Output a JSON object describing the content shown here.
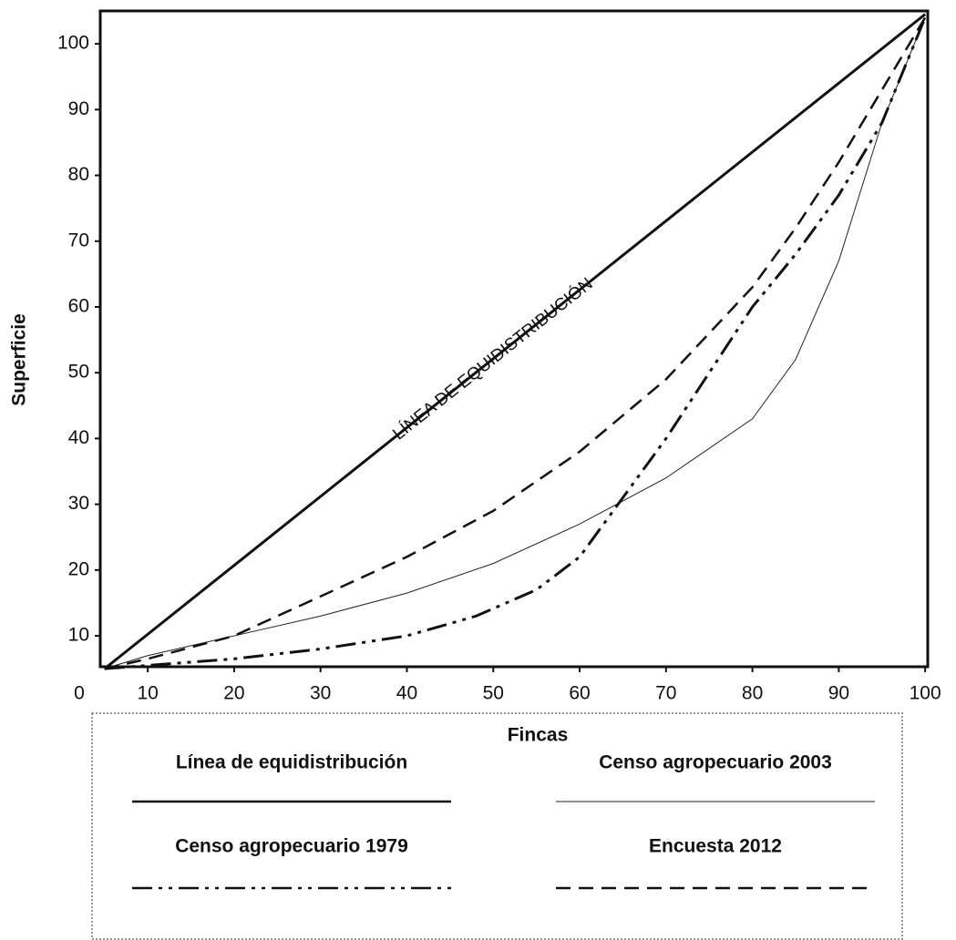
{
  "chart_data": {
    "type": "line",
    "xlabel": "Fincas",
    "ylabel": "Superficie",
    "origin_label": "0",
    "annotation": "LÍNEA DE EQUIDISTRIBUCIÓN",
    "xlim": [
      4.5,
      100.3
    ],
    "ylim": [
      5.3,
      105
    ],
    "xticks": [
      10,
      20,
      30,
      40,
      50,
      60,
      70,
      80,
      90,
      100
    ],
    "yticks": [
      10,
      20,
      30,
      40,
      50,
      60,
      70,
      80,
      90,
      100
    ],
    "series": [
      {
        "name": "Línea de equidistribución",
        "color": "#111111",
        "style": "solid",
        "width": 3,
        "x": [
          5,
          100
        ],
        "values": [
          5,
          104.5
        ]
      },
      {
        "name": "Censo agropecuario 2003",
        "color": "#222222",
        "style": "solid",
        "width": 1,
        "x": [
          5,
          10,
          20,
          30,
          40,
          50,
          60,
          70,
          80,
          85,
          90,
          95,
          100
        ],
        "values": [
          5,
          7,
          10,
          13,
          16.5,
          21,
          27,
          34,
          43,
          52,
          67,
          88,
          104
        ]
      },
      {
        "name": "Censo agropecuario 1979",
        "color": "#111111",
        "style": "dashdotdot",
        "width": 3,
        "x": [
          5,
          10,
          20,
          30,
          40,
          48,
          55,
          60,
          65,
          70,
          75,
          80,
          85,
          90,
          95,
          100
        ],
        "values": [
          5,
          5.5,
          6.5,
          8,
          10,
          13,
          17,
          22,
          31,
          40,
          50,
          60,
          68,
          77,
          88,
          104
        ]
      },
      {
        "name": "Encuesta 2012",
        "color": "#111111",
        "style": "dashed",
        "width": 2.5,
        "x": [
          5,
          10,
          20,
          30,
          40,
          50,
          60,
          70,
          80,
          85,
          90,
          95,
          100
        ],
        "values": [
          5,
          6.5,
          10,
          16,
          22,
          29,
          38,
          49,
          63,
          72,
          82,
          93,
          104
        ]
      }
    ]
  }
}
